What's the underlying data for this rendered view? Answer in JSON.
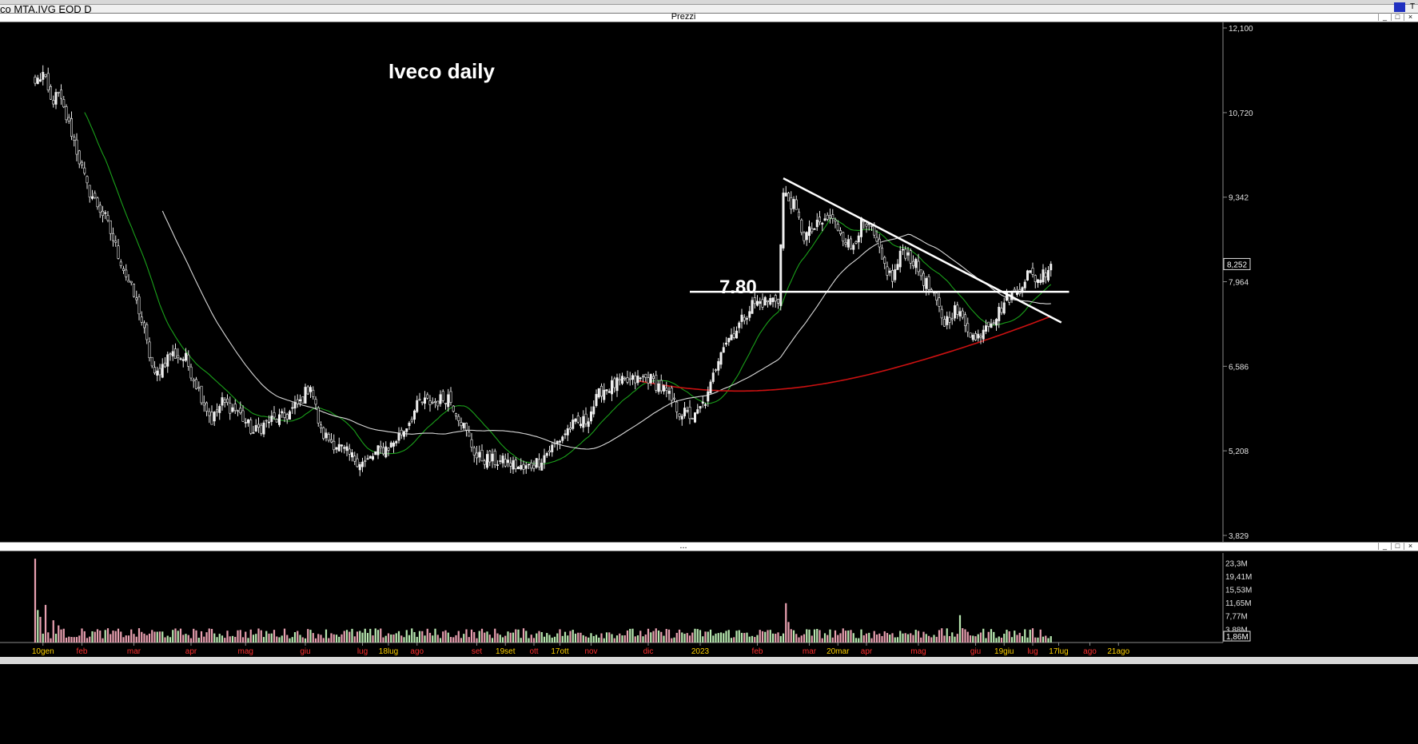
{
  "window": {
    "title": "co MTA.IVG EOD D",
    "price_panel_label": "Prezzi",
    "volume_panel_label": "..."
  },
  "chart_data": [
    {
      "type": "candlestick",
      "title": "Iveco daily",
      "annotation_label": "7.80",
      "y_ticks": [
        "12,100",
        "10,720",
        "9,342",
        "7,964",
        "6,586",
        "5,208",
        "3,829"
      ],
      "y_tick_values": [
        12.1,
        10.72,
        9.342,
        7.964,
        6.586,
        5.208,
        3.829
      ],
      "ylim": [
        3.829,
        12.1
      ],
      "last_price_label": "8,252",
      "last_price": 8.252,
      "x_labels": [
        {
          "text": "10gen",
          "i": 3,
          "color": "yellow"
        },
        {
          "text": "feb",
          "i": 18,
          "color": "red"
        },
        {
          "text": "mar",
          "i": 38,
          "color": "red"
        },
        {
          "text": "apr",
          "i": 60,
          "color": "red"
        },
        {
          "text": "mag",
          "i": 81,
          "color": "red"
        },
        {
          "text": "giu",
          "i": 104,
          "color": "red"
        },
        {
          "text": "lug",
          "i": 126,
          "color": "red"
        },
        {
          "text": "18lug",
          "i": 136,
          "color": "yellow"
        },
        {
          "text": "ago",
          "i": 147,
          "color": "red"
        },
        {
          "text": "set",
          "i": 170,
          "color": "red"
        },
        {
          "text": "19set",
          "i": 181,
          "color": "yellow"
        },
        {
          "text": "ott",
          "i": 192,
          "color": "red"
        },
        {
          "text": "17ott",
          "i": 202,
          "color": "yellow"
        },
        {
          "text": "nov",
          "i": 214,
          "color": "red"
        },
        {
          "text": "dic",
          "i": 236,
          "color": "red"
        },
        {
          "text": "2023",
          "i": 256,
          "color": "yellow"
        },
        {
          "text": "feb",
          "i": 278,
          "color": "red"
        },
        {
          "text": "mar",
          "i": 298,
          "color": "red"
        },
        {
          "text": "20mar",
          "i": 309,
          "color": "yellow"
        },
        {
          "text": "apr",
          "i": 320,
          "color": "red"
        },
        {
          "text": "mag",
          "i": 340,
          "color": "red"
        },
        {
          "text": "giu",
          "i": 362,
          "color": "red"
        },
        {
          "text": "19giu",
          "i": 373,
          "color": "yellow"
        },
        {
          "text": "lug",
          "i": 384,
          "color": "red"
        },
        {
          "text": "17lug",
          "i": 394,
          "color": "yellow"
        },
        {
          "text": "ago",
          "i": 406,
          "color": "red"
        },
        {
          "text": "21ago",
          "i": 417,
          "color": "yellow"
        }
      ],
      "close_anchors": [
        {
          "i": 0,
          "v": 11.2
        },
        {
          "i": 3,
          "v": 11.35
        },
        {
          "i": 6,
          "v": 10.9
        },
        {
          "i": 9,
          "v": 11.0
        },
        {
          "i": 14,
          "v": 10.4
        },
        {
          "i": 20,
          "v": 9.5
        },
        {
          "i": 27,
          "v": 9.0
        },
        {
          "i": 33,
          "v": 8.3
        },
        {
          "i": 40,
          "v": 7.5
        },
        {
          "i": 46,
          "v": 6.4
        },
        {
          "i": 52,
          "v": 6.8
        },
        {
          "i": 58,
          "v": 6.7
        },
        {
          "i": 64,
          "v": 6.1
        },
        {
          "i": 68,
          "v": 5.7
        },
        {
          "i": 72,
          "v": 6.0
        },
        {
          "i": 78,
          "v": 5.85
        },
        {
          "i": 84,
          "v": 5.5
        },
        {
          "i": 90,
          "v": 5.7
        },
        {
          "i": 96,
          "v": 5.75
        },
        {
          "i": 102,
          "v": 6.0
        },
        {
          "i": 106,
          "v": 6.3
        },
        {
          "i": 110,
          "v": 5.5
        },
        {
          "i": 116,
          "v": 5.3
        },
        {
          "i": 122,
          "v": 5.1
        },
        {
          "i": 127,
          "v": 5.0
        },
        {
          "i": 132,
          "v": 5.2
        },
        {
          "i": 137,
          "v": 5.3
        },
        {
          "i": 142,
          "v": 5.55
        },
        {
          "i": 148,
          "v": 6.0
        },
        {
          "i": 154,
          "v": 6.0
        },
        {
          "i": 159,
          "v": 6.1
        },
        {
          "i": 164,
          "v": 5.7
        },
        {
          "i": 170,
          "v": 5.1
        },
        {
          "i": 176,
          "v": 5.05
        },
        {
          "i": 183,
          "v": 5.0
        },
        {
          "i": 188,
          "v": 4.9
        },
        {
          "i": 194,
          "v": 5.05
        },
        {
          "i": 200,
          "v": 5.3
        },
        {
          "i": 206,
          "v": 5.6
        },
        {
          "i": 212,
          "v": 5.7
        },
        {
          "i": 218,
          "v": 6.2
        },
        {
          "i": 224,
          "v": 6.3
        },
        {
          "i": 230,
          "v": 6.35
        },
        {
          "i": 236,
          "v": 6.4
        },
        {
          "i": 242,
          "v": 6.2
        },
        {
          "i": 248,
          "v": 5.85
        },
        {
          "i": 254,
          "v": 5.75
        },
        {
          "i": 259,
          "v": 6.1
        },
        {
          "i": 264,
          "v": 6.9
        },
        {
          "i": 270,
          "v": 7.2
        },
        {
          "i": 276,
          "v": 7.6
        },
        {
          "i": 282,
          "v": 7.65
        },
        {
          "i": 286,
          "v": 7.7
        },
        {
          "i": 288,
          "v": 9.4
        },
        {
          "i": 292,
          "v": 9.2
        },
        {
          "i": 296,
          "v": 8.7
        },
        {
          "i": 302,
          "v": 8.9
        },
        {
          "i": 306,
          "v": 9.0
        },
        {
          "i": 310,
          "v": 8.8
        },
        {
          "i": 314,
          "v": 8.5
        },
        {
          "i": 318,
          "v": 8.9
        },
        {
          "i": 322,
          "v": 8.8
        },
        {
          "i": 326,
          "v": 8.3
        },
        {
          "i": 330,
          "v": 8.0
        },
        {
          "i": 334,
          "v": 8.5
        },
        {
          "i": 338,
          "v": 8.3
        },
        {
          "i": 342,
          "v": 8.0
        },
        {
          "i": 346,
          "v": 7.7
        },
        {
          "i": 350,
          "v": 7.3
        },
        {
          "i": 354,
          "v": 7.5
        },
        {
          "i": 358,
          "v": 7.3
        },
        {
          "i": 362,
          "v": 7.0
        },
        {
          "i": 366,
          "v": 7.3
        },
        {
          "i": 370,
          "v": 7.4
        },
        {
          "i": 374,
          "v": 7.7
        },
        {
          "i": 378,
          "v": 7.8
        },
        {
          "i": 382,
          "v": 8.1
        },
        {
          "i": 386,
          "v": 8.0
        },
        {
          "i": 390,
          "v": 8.2
        },
        {
          "i": 391,
          "v": 8.252
        }
      ],
      "moving_averages": [
        {
          "color": "#1aa01a",
          "period": 20
        },
        {
          "color": "#d8d8d8",
          "period": 50
        },
        {
          "color": "#cc1111",
          "period": 200
        }
      ],
      "trendline": {
        "from": {
          "i": 288,
          "v": 9.65
        },
        "to": {
          "i": 395,
          "v": 7.3
        }
      },
      "horizontal_level": {
        "from_i": 252,
        "to_i": 398,
        "v": 7.8
      }
    },
    {
      "type": "bar",
      "series_label": "volume",
      "y_ticks": [
        "23,3M",
        "19,41M",
        "15,53M",
        "11,65M",
        "7,77M",
        "3,88M"
      ],
      "y_tick_values": [
        23.3,
        19.41,
        15.53,
        11.65,
        7.77,
        3.88
      ],
      "ylim": [
        0,
        25
      ],
      "last_label": "1,86M",
      "last_value": 1.86,
      "spikes": [
        {
          "i": 0,
          "v": 24.5
        },
        {
          "i": 1,
          "v": 9.5
        },
        {
          "i": 2,
          "v": 7.5
        },
        {
          "i": 4,
          "v": 11.0
        },
        {
          "i": 7,
          "v": 6.5
        },
        {
          "i": 9,
          "v": 5.0
        },
        {
          "i": 289,
          "v": 11.5
        },
        {
          "i": 290,
          "v": 6.0
        },
        {
          "i": 356,
          "v": 8.0
        }
      ]
    }
  ]
}
